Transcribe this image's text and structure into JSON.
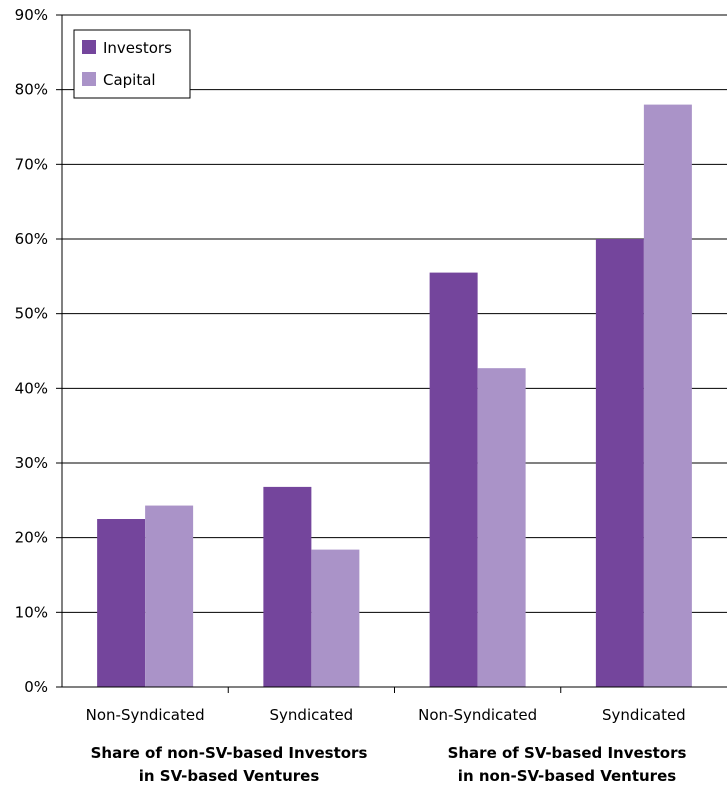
{
  "chart_data": {
    "type": "bar",
    "ylim": [
      0,
      90
    ],
    "y_tick_step": 10,
    "y_tick_format": "percent",
    "grid": true,
    "legend_position": "top-left",
    "categories": [
      "Non-Syndicated",
      "Syndicated",
      "Non-Syndicated",
      "Syndicated"
    ],
    "groups": [
      {
        "label_line1": "Share of non-SV-based Investors",
        "label_line2": "in SV-based Ventures",
        "categories": [
          0,
          1
        ]
      },
      {
        "label_line1": "Share of SV-based Investors",
        "label_line2": "in non-SV-based Ventures",
        "categories": [
          2,
          3
        ]
      }
    ],
    "series": [
      {
        "name": "Investors",
        "color": "#74459c",
        "values": [
          22.5,
          26.8,
          55.5,
          60.0
        ]
      },
      {
        "name": "Capital",
        "color": "#aa93c8",
        "values": [
          24.3,
          18.4,
          42.7,
          78.0
        ]
      }
    ]
  }
}
